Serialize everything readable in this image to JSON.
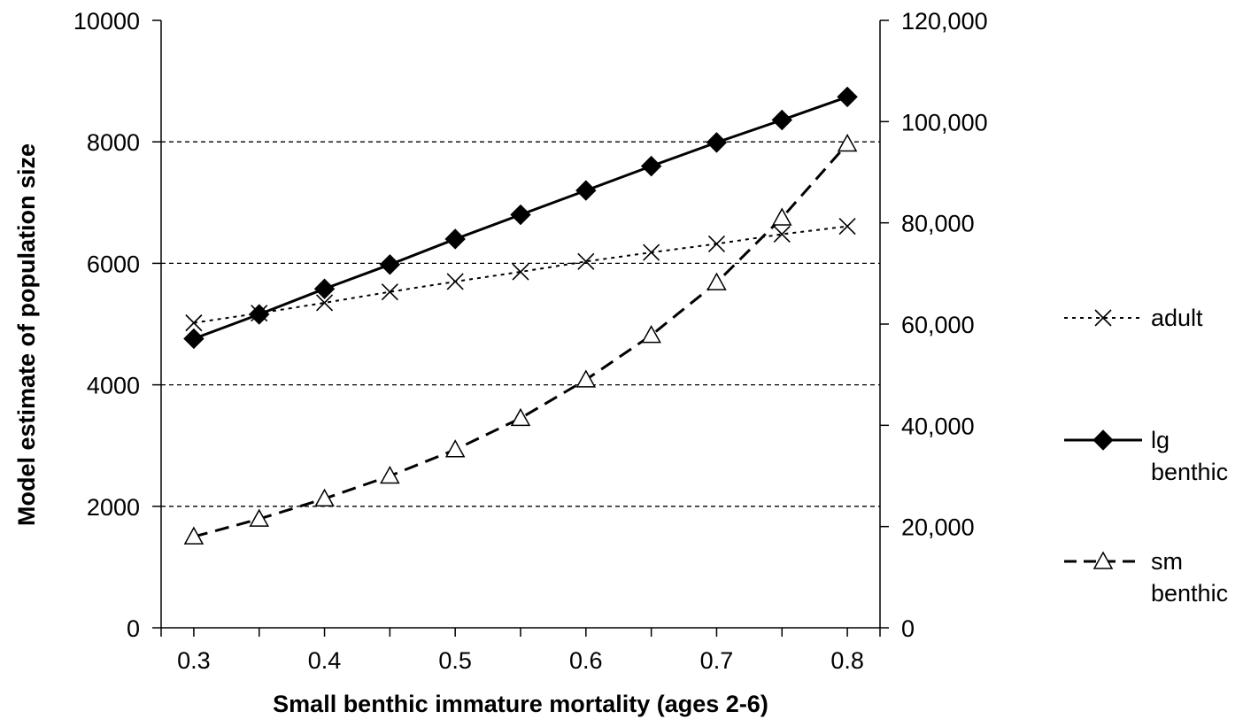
{
  "chart_data": {
    "type": "line",
    "title": "",
    "xlabel": "Small benthic immature mortality (ages 2-6)",
    "ylabel": "Model estimate of population size",
    "xlim": [
      0.275,
      0.825
    ],
    "ylim": [
      0,
      10000
    ],
    "y2lim": [
      0,
      120000
    ],
    "x_tick_labels": [
      "0.3",
      "0.4",
      "0.5",
      "0.6",
      "0.7",
      "0.8"
    ],
    "x_tick_values": [
      0.3,
      0.4,
      0.5,
      0.6,
      0.7,
      0.8
    ],
    "x_minor_ticks": [
      0.35,
      0.45,
      0.55,
      0.65,
      0.75
    ],
    "y_tick_labels": [
      "0",
      "2000",
      "4000",
      "6000",
      "8000",
      "10000"
    ],
    "y_tick_values": [
      0,
      2000,
      4000,
      6000,
      8000,
      10000
    ],
    "y2_tick_labels": [
      "0",
      "20,000",
      "40,000",
      "60,000",
      "80,000",
      "100,000",
      "120,000"
    ],
    "y2_tick_values": [
      0,
      20000,
      40000,
      60000,
      80000,
      100000,
      120000
    ],
    "gridlines_y": [
      2000,
      4000,
      6000,
      8000
    ],
    "legend_position": "right",
    "x": [
      0.3,
      0.35,
      0.4,
      0.45,
      0.5,
      0.55,
      0.6,
      0.65,
      0.7,
      0.75,
      0.8
    ],
    "series": [
      {
        "name": "adult",
        "axis": "left",
        "marker": "x",
        "line_style": "dotted",
        "values": [
          5020,
          5180,
          5350,
          5530,
          5700,
          5860,
          6030,
          6180,
          6320,
          6480,
          6610
        ]
      },
      {
        "name": "lg benthic",
        "axis": "left",
        "marker": "filled-diamond",
        "line_style": "solid",
        "values": [
          4760,
          5160,
          5580,
          5980,
          6400,
          6800,
          7200,
          7600,
          7990,
          8360,
          8740
        ]
      },
      {
        "name": "sm benthic",
        "axis": "right",
        "marker": "open-triangle",
        "line_style": "dashed",
        "values": [
          18000,
          21500,
          25500,
          30000,
          35200,
          41400,
          49000,
          57800,
          68200,
          81000,
          95600
        ]
      }
    ],
    "legend": [
      {
        "series": "adult",
        "lines": [
          "adult"
        ]
      },
      {
        "series": "lg benthic",
        "lines": [
          "lg",
          "benthic"
        ]
      },
      {
        "series": "sm benthic",
        "lines": [
          "sm",
          "benthic"
        ]
      }
    ]
  }
}
